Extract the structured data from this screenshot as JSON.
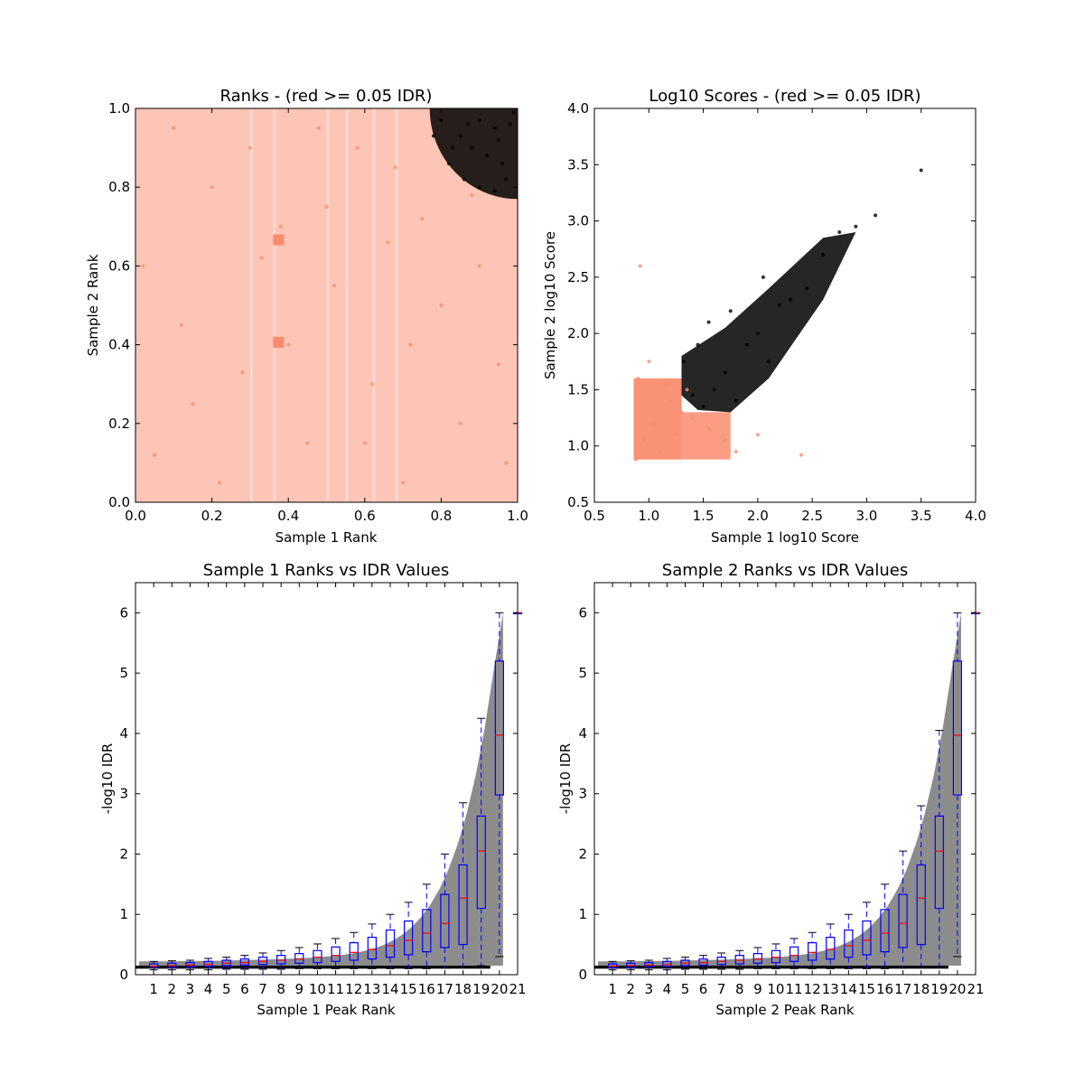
{
  "chart_data": [
    {
      "type": "scatter",
      "title": "Ranks - (red >= 0.05 IDR)",
      "xlabel": "Sample 1 Rank",
      "ylabel": "Sample 2 Rank",
      "xlim": [
        0.0,
        1.0
      ],
      "ylim": [
        0.0,
        1.0
      ],
      "xticks": [
        "0.0",
        "0.2",
        "0.4",
        "0.6",
        "0.8",
        "1.0"
      ],
      "yticks": [
        "0.0",
        "0.2",
        "0.4",
        "0.6",
        "0.8",
        "1.0"
      ],
      "colors": {
        "fail": "#fa8c6e",
        "pass": "#000000"
      },
      "points_fail": [
        [
          0.05,
          0.12
        ],
        [
          0.12,
          0.45
        ],
        [
          0.2,
          0.8
        ],
        [
          0.28,
          0.33
        ],
        [
          0.33,
          0.62
        ],
        [
          0.4,
          0.4
        ],
        [
          0.45,
          0.15
        ],
        [
          0.52,
          0.55
        ],
        [
          0.58,
          0.9
        ],
        [
          0.62,
          0.3
        ],
        [
          0.66,
          0.66
        ],
        [
          0.7,
          0.05
        ],
        [
          0.75,
          0.72
        ],
        [
          0.8,
          0.5
        ],
        [
          0.85,
          0.2
        ],
        [
          0.9,
          0.6
        ],
        [
          0.95,
          0.35
        ],
        [
          0.1,
          0.95
        ],
        [
          0.3,
          0.9
        ],
        [
          0.5,
          0.75
        ],
        [
          0.68,
          0.85
        ],
        [
          0.22,
          0.05
        ],
        [
          0.15,
          0.25
        ],
        [
          0.38,
          0.7
        ],
        [
          0.48,
          0.95
        ],
        [
          0.6,
          0.15
        ],
        [
          0.72,
          0.4
        ],
        [
          0.88,
          0.78
        ],
        [
          0.97,
          0.1
        ],
        [
          0.02,
          0.6
        ]
      ],
      "points_pass": [
        [
          0.78,
          0.93
        ],
        [
          0.82,
          0.86
        ],
        [
          0.86,
          0.82
        ],
        [
          0.9,
          0.8
        ],
        [
          0.94,
          0.79
        ],
        [
          0.97,
          0.82
        ],
        [
          0.8,
          0.97
        ],
        [
          0.85,
          0.93
        ],
        [
          0.88,
          0.9
        ],
        [
          0.92,
          0.88
        ],
        [
          0.95,
          0.92
        ],
        [
          0.98,
          0.96
        ],
        [
          0.9,
          0.97
        ],
        [
          0.94,
          0.95
        ],
        [
          0.99,
          0.99
        ],
        [
          0.87,
          0.96
        ],
        [
          0.96,
          0.86
        ],
        [
          0.83,
          0.9
        ]
      ]
    },
    {
      "type": "scatter",
      "title": "Log10 Scores - (red >= 0.05 IDR)",
      "xlabel": "Sample 1 log10 Score",
      "ylabel": "Sample 2 log10 Score",
      "xlim": [
        0.5,
        4.0
      ],
      "ylim": [
        0.5,
        4.0
      ],
      "xticks": [
        "0.5",
        "1.0",
        "1.5",
        "2.0",
        "2.5",
        "3.0",
        "3.5",
        "4.0"
      ],
      "yticks": [
        "0.5",
        "1.0",
        "1.5",
        "2.0",
        "2.5",
        "3.0",
        "3.5",
        "4.0"
      ],
      "colors": {
        "fail": "#fa8c6e",
        "pass": "#000000"
      },
      "points_fail": [
        [
          0.88,
          0.88
        ],
        [
          0.95,
          1.05
        ],
        [
          1.05,
          1.2
        ],
        [
          1.1,
          0.95
        ],
        [
          1.2,
          1.4
        ],
        [
          1.25,
          1.1
        ],
        [
          1.3,
          1.3
        ],
        [
          1.4,
          1.25
        ],
        [
          1.55,
          1.15
        ],
        [
          1.7,
          1.05
        ],
        [
          0.9,
          1.6
        ],
        [
          1.0,
          1.75
        ],
        [
          1.15,
          1.55
        ],
        [
          1.8,
          0.95
        ],
        [
          2.0,
          1.1
        ],
        [
          2.4,
          0.92
        ],
        [
          1.35,
          1.5
        ],
        [
          0.92,
          2.6
        ]
      ],
      "points_pass": [
        [
          1.32,
          1.75
        ],
        [
          1.4,
          1.45
        ],
        [
          1.5,
          1.35
        ],
        [
          1.6,
          1.5
        ],
        [
          1.7,
          1.65
        ],
        [
          1.8,
          1.4
        ],
        [
          1.9,
          1.9
        ],
        [
          2.0,
          2.0
        ],
        [
          2.1,
          1.75
        ],
        [
          2.2,
          2.25
        ],
        [
          2.3,
          2.3
        ],
        [
          2.45,
          2.4
        ],
        [
          2.6,
          2.7
        ],
        [
          2.75,
          2.9
        ],
        [
          2.9,
          2.95
        ],
        [
          3.08,
          3.05
        ],
        [
          3.5,
          3.45
        ],
        [
          1.45,
          1.9
        ],
        [
          1.55,
          2.1
        ],
        [
          1.75,
          2.2
        ],
        [
          2.05,
          2.5
        ]
      ]
    },
    {
      "type": "boxplot",
      "title": "Sample 1 Ranks vs IDR Values",
      "xlabel": "Sample 1 Peak Rank",
      "ylabel": "-log10 IDR",
      "xlim": [
        0,
        21
      ],
      "ylim": [
        0,
        6.5
      ],
      "xticks": [
        "1",
        "2",
        "3",
        "4",
        "5",
        "6",
        "7",
        "8",
        "9",
        "10",
        "11",
        "12",
        "13",
        "14",
        "15",
        "16",
        "17",
        "18",
        "19",
        "20",
        "21"
      ],
      "yticks": [
        "0",
        "1",
        "2",
        "3",
        "4",
        "5",
        "6"
      ],
      "boxes": [
        {
          "q1": 0.12,
          "med": 0.14,
          "q3": 0.18,
          "lo": 0.08,
          "hi": 0.22
        },
        {
          "q1": 0.12,
          "med": 0.15,
          "q3": 0.19,
          "lo": 0.08,
          "hi": 0.23
        },
        {
          "q1": 0.13,
          "med": 0.16,
          "q3": 0.2,
          "lo": 0.08,
          "hi": 0.24
        },
        {
          "q1": 0.14,
          "med": 0.17,
          "q3": 0.22,
          "lo": 0.08,
          "hi": 0.27
        },
        {
          "q1": 0.15,
          "med": 0.19,
          "q3": 0.24,
          "lo": 0.09,
          "hi": 0.29
        },
        {
          "q1": 0.16,
          "med": 0.2,
          "q3": 0.26,
          "lo": 0.09,
          "hi": 0.32
        },
        {
          "q1": 0.17,
          "med": 0.22,
          "q3": 0.29,
          "lo": 0.09,
          "hi": 0.36
        },
        {
          "q1": 0.18,
          "med": 0.24,
          "q3": 0.32,
          "lo": 0.09,
          "hi": 0.4
        },
        {
          "q1": 0.19,
          "med": 0.26,
          "q3": 0.35,
          "lo": 0.1,
          "hi": 0.45
        },
        {
          "q1": 0.2,
          "med": 0.29,
          "q3": 0.4,
          "lo": 0.1,
          "hi": 0.51
        },
        {
          "q1": 0.22,
          "med": 0.32,
          "q3": 0.46,
          "lo": 0.1,
          "hi": 0.6
        },
        {
          "q1": 0.24,
          "med": 0.37,
          "q3": 0.53,
          "lo": 0.1,
          "hi": 0.7
        },
        {
          "q1": 0.26,
          "med": 0.42,
          "q3": 0.62,
          "lo": 0.1,
          "hi": 0.84
        },
        {
          "q1": 0.29,
          "med": 0.48,
          "q3": 0.74,
          "lo": 0.1,
          "hi": 1.0
        },
        {
          "q1": 0.33,
          "med": 0.57,
          "q3": 0.89,
          "lo": 0.1,
          "hi": 1.2
        },
        {
          "q1": 0.38,
          "med": 0.69,
          "q3": 1.08,
          "lo": 0.1,
          "hi": 1.5
        },
        {
          "q1": 0.45,
          "med": 0.85,
          "q3": 1.33,
          "lo": 0.11,
          "hi": 2.0
        },
        {
          "q1": 0.5,
          "med": 1.27,
          "q3": 1.82,
          "lo": 0.12,
          "hi": 2.85
        },
        {
          "q1": 1.1,
          "med": 2.05,
          "q3": 2.63,
          "lo": 0.15,
          "hi": 4.25
        },
        {
          "q1": 2.98,
          "med": 3.97,
          "q3": 5.2,
          "lo": 0.3,
          "hi": 6.0
        },
        {
          "q1": 6.0,
          "med": 6.0,
          "q3": 6.0,
          "lo": 6.0,
          "hi": 6.0
        }
      ]
    },
    {
      "type": "boxplot",
      "title": "Sample 2 Ranks vs IDR Values",
      "xlabel": "Sample 2 Peak Rank",
      "ylabel": "-log10 IDR",
      "xlim": [
        0,
        21
      ],
      "ylim": [
        0,
        6.5
      ],
      "xticks": [
        "1",
        "2",
        "3",
        "4",
        "5",
        "6",
        "7",
        "8",
        "9",
        "10",
        "11",
        "12",
        "13",
        "14",
        "15",
        "16",
        "17",
        "18",
        "19",
        "20",
        "21"
      ],
      "yticks": [
        "0",
        "1",
        "2",
        "3",
        "4",
        "5",
        "6"
      ],
      "boxes": [
        {
          "q1": 0.12,
          "med": 0.14,
          "q3": 0.18,
          "lo": 0.08,
          "hi": 0.22
        },
        {
          "q1": 0.12,
          "med": 0.15,
          "q3": 0.19,
          "lo": 0.08,
          "hi": 0.23
        },
        {
          "q1": 0.13,
          "med": 0.16,
          "q3": 0.2,
          "lo": 0.08,
          "hi": 0.24
        },
        {
          "q1": 0.14,
          "med": 0.17,
          "q3": 0.22,
          "lo": 0.08,
          "hi": 0.27
        },
        {
          "q1": 0.15,
          "med": 0.19,
          "q3": 0.24,
          "lo": 0.09,
          "hi": 0.29
        },
        {
          "q1": 0.16,
          "med": 0.2,
          "q3": 0.26,
          "lo": 0.09,
          "hi": 0.32
        },
        {
          "q1": 0.17,
          "med": 0.22,
          "q3": 0.29,
          "lo": 0.09,
          "hi": 0.36
        },
        {
          "q1": 0.18,
          "med": 0.24,
          "q3": 0.32,
          "lo": 0.09,
          "hi": 0.4
        },
        {
          "q1": 0.19,
          "med": 0.26,
          "q3": 0.35,
          "lo": 0.1,
          "hi": 0.45
        },
        {
          "q1": 0.2,
          "med": 0.29,
          "q3": 0.4,
          "lo": 0.1,
          "hi": 0.51
        },
        {
          "q1": 0.22,
          "med": 0.32,
          "q3": 0.46,
          "lo": 0.1,
          "hi": 0.6
        },
        {
          "q1": 0.24,
          "med": 0.37,
          "q3": 0.53,
          "lo": 0.1,
          "hi": 0.7
        },
        {
          "q1": 0.26,
          "med": 0.42,
          "q3": 0.62,
          "lo": 0.1,
          "hi": 0.84
        },
        {
          "q1": 0.29,
          "med": 0.48,
          "q3": 0.74,
          "lo": 0.1,
          "hi": 1.0
        },
        {
          "q1": 0.33,
          "med": 0.57,
          "q3": 0.89,
          "lo": 0.1,
          "hi": 1.2
        },
        {
          "q1": 0.38,
          "med": 0.69,
          "q3": 1.08,
          "lo": 0.1,
          "hi": 1.5
        },
        {
          "q1": 0.45,
          "med": 0.85,
          "q3": 1.33,
          "lo": 0.11,
          "hi": 2.05
        },
        {
          "q1": 0.5,
          "med": 1.27,
          "q3": 1.82,
          "lo": 0.12,
          "hi": 2.8
        },
        {
          "q1": 1.1,
          "med": 2.05,
          "q3": 2.63,
          "lo": 0.12,
          "hi": 4.05
        },
        {
          "q1": 2.98,
          "med": 3.97,
          "q3": 5.2,
          "lo": 0.3,
          "hi": 6.0
        },
        {
          "q1": 6.0,
          "med": 6.0,
          "q3": 6.0,
          "lo": 6.0,
          "hi": 6.0
        }
      ]
    }
  ]
}
